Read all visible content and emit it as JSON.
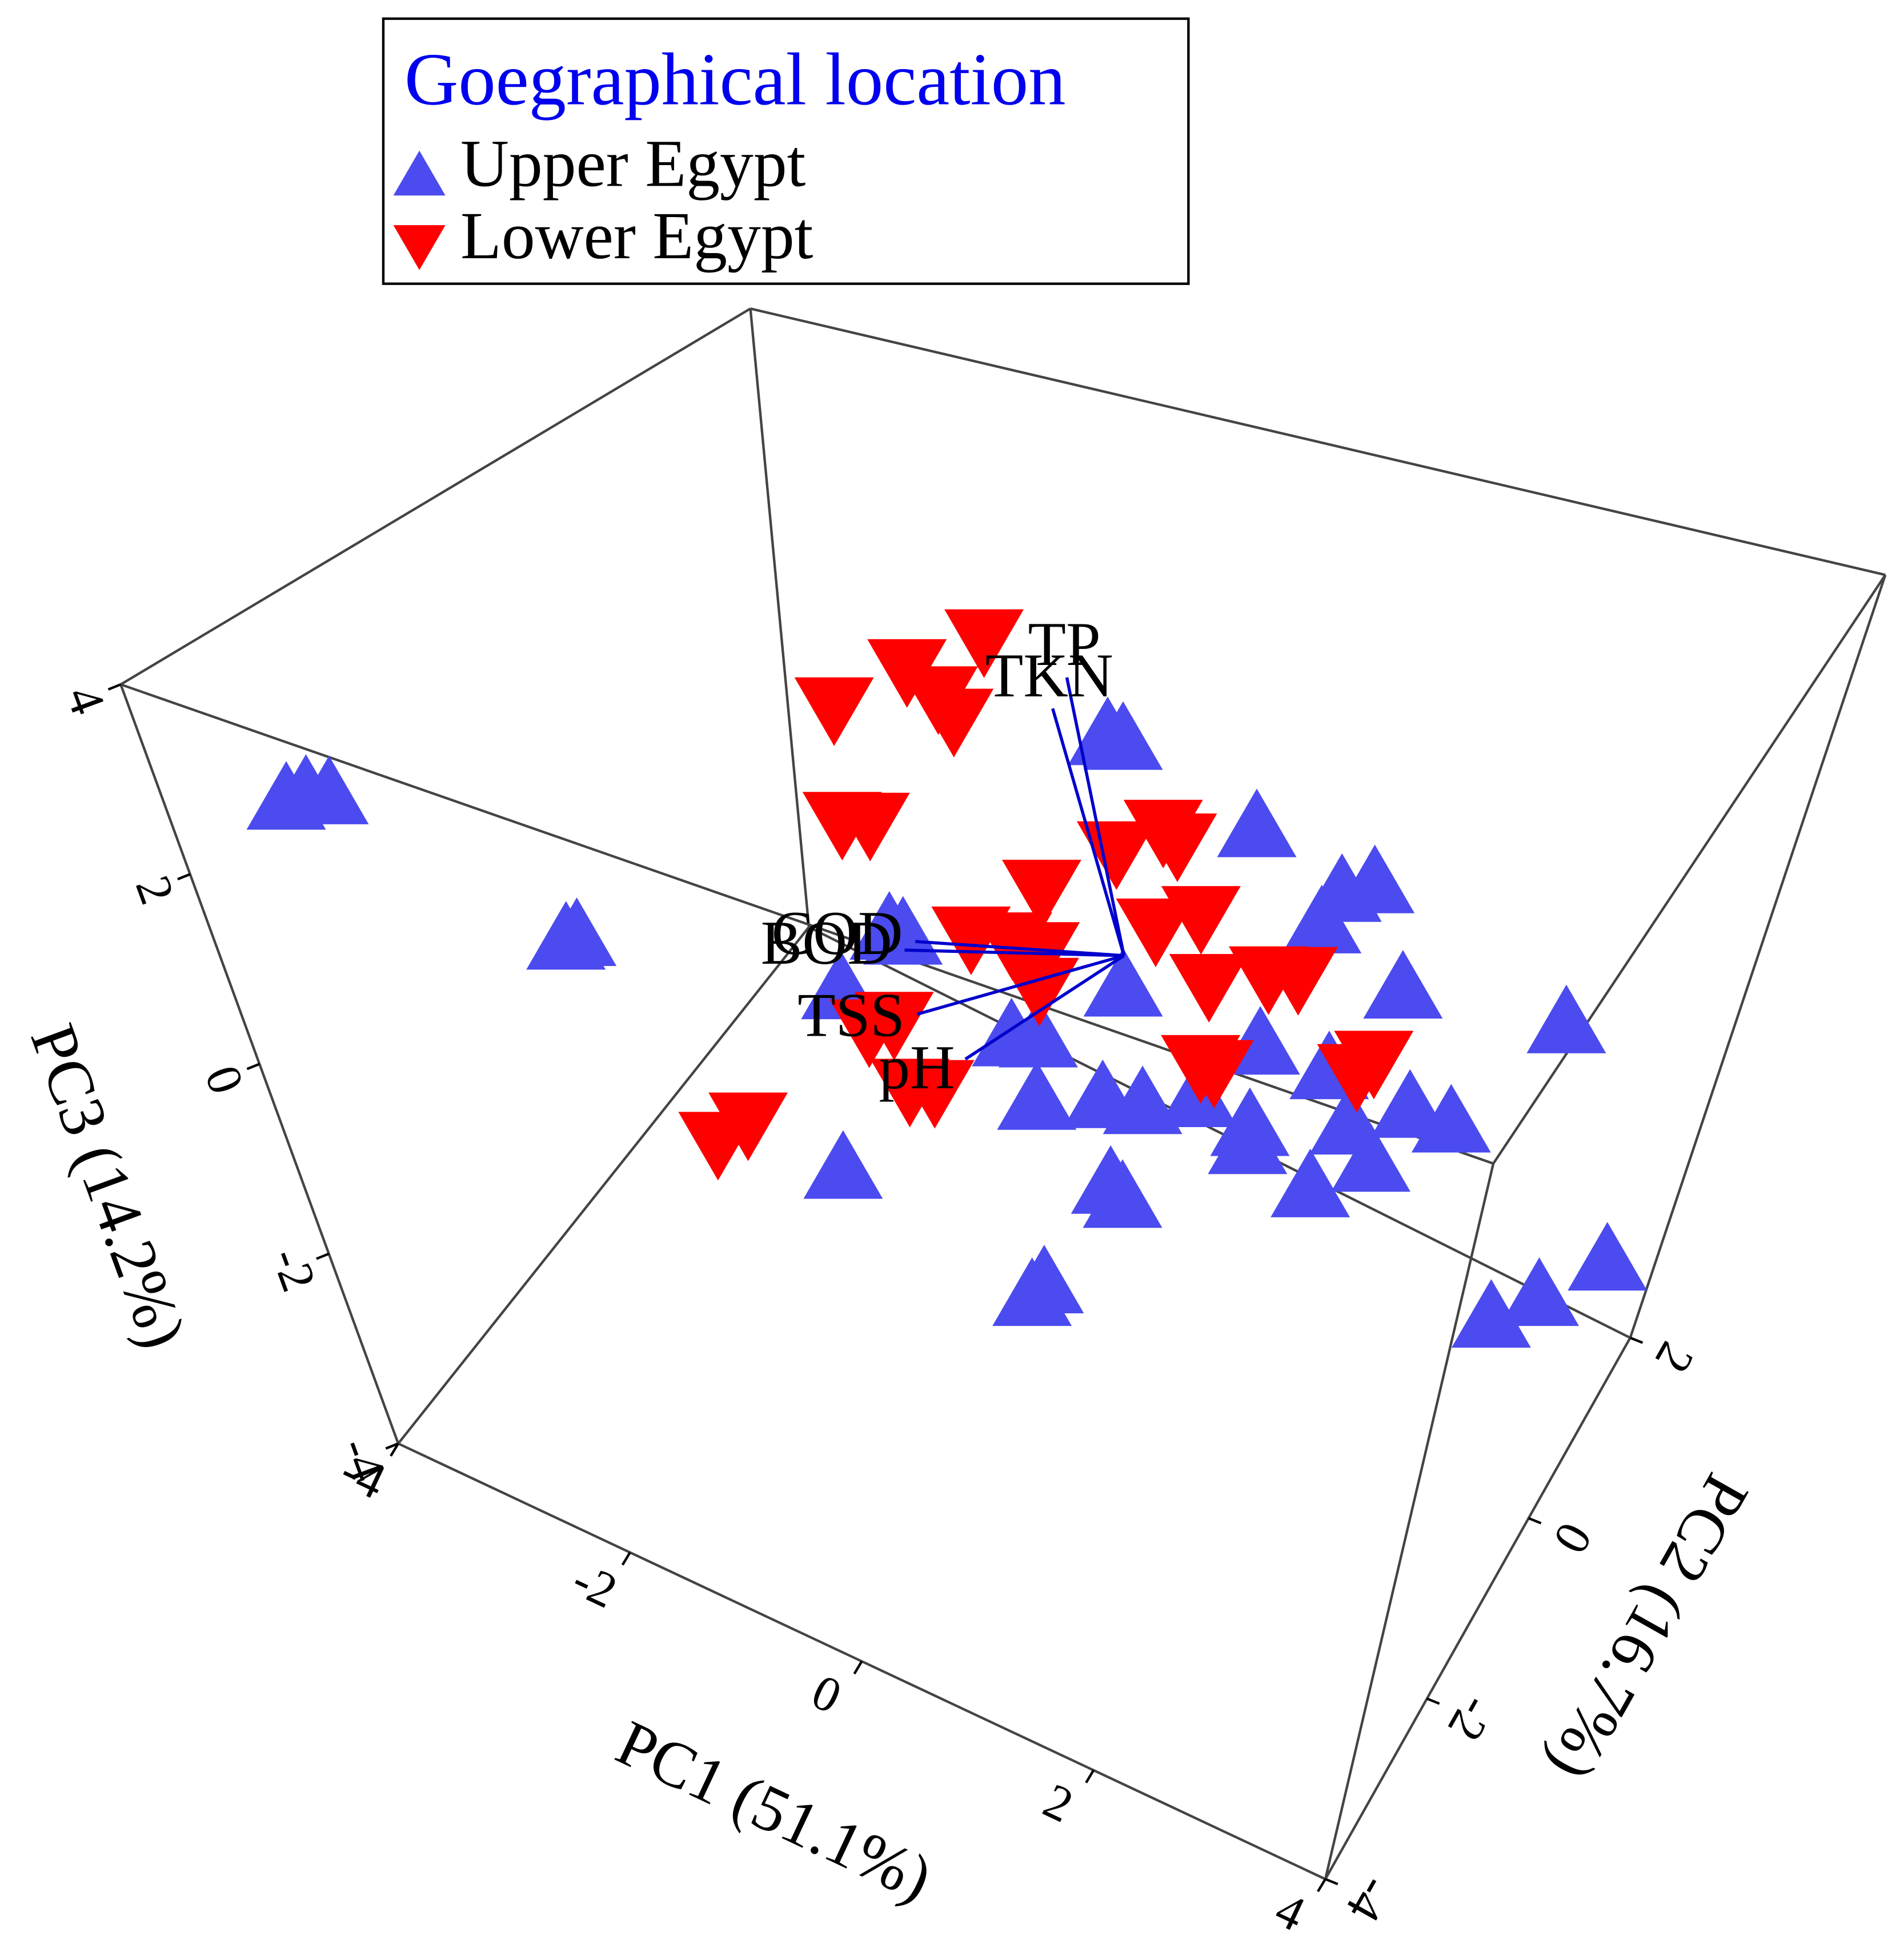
{
  "chart_data": {
    "type": "scatter3d",
    "legend_title": "Goegraphical location",
    "xlabel": "PC1 (51.1%)",
    "ylabel": "PC2 (16.7%)",
    "zlabel": "PC3 (14.2%)",
    "xlim": [
      -4,
      4
    ],
    "ylim": [
      -4,
      2
    ],
    "zlim": [
      -4,
      4
    ],
    "xticks": [
      -4,
      -2,
      0,
      2,
      4
    ],
    "yticks": [
      -4,
      -2,
      0,
      2
    ],
    "zticks": [
      -4,
      -2,
      0,
      2,
      4
    ],
    "series": [
      {
        "name": "Upper Egypt",
        "color": "#4b4bef",
        "marker": "triangle-up",
        "x": [
          -5.9,
          -5.7,
          -5.5,
          -3.8,
          -3.7,
          0.3,
          0.4,
          1.3,
          1.9,
          2.1,
          -1.2,
          -1.1,
          -1.6,
          2.4,
          3.5,
          0.5,
          -0.3,
          -0.1,
          -0.1,
          0.4,
          0.7,
          1.5,
          1.5,
          2.0,
          2.2,
          2.6,
          2.9,
          2.0,
          2.4,
          0.5,
          0.6,
          -0.1,
          0.0,
          3.5,
          3.8,
          4.2,
          -1.7,
          1.1,
          1.8,
          1.5
        ],
        "y": [
          -1,
          -1,
          -1,
          -1,
          -1,
          -1,
          -1,
          -1,
          -1,
          -1,
          -1,
          -1,
          -1,
          -1,
          -1,
          -1,
          -1,
          -1,
          -1,
          -1,
          -1,
          -1,
          -1,
          -1,
          -1,
          -1,
          -1,
          -1,
          -1,
          -1,
          -1,
          -1,
          -1,
          -1,
          -1,
          -1,
          -1,
          -1,
          -1,
          -1
        ],
        "z": [
          -0.6,
          -0.4,
          -0.3,
          -1.0,
          -0.9,
          3.6,
          3.6,
          3.1,
          2.7,
          2.9,
          0.6,
          0.6,
          -0.3,
          1.9,
          2.1,
          0.9,
          -0.1,
          0.0,
          -0.7,
          -0.4,
          -0.3,
          0.8,
          -0.1,
          0.8,
          0.3,
          0.7,
          0.7,
          -0.5,
          0.0,
          -1.3,
          -1.4,
          -2.9,
          -2.7,
          -1.1,
          -0.7,
          -0.1,
          -2.4,
          0.0,
          2.3,
          -0.3
        ]
      },
      {
        "name": "Lower Egypt",
        "color": "#ff0000",
        "marker": "triangle-down",
        "x": [
          -0.5,
          -1.0,
          -0.8,
          -1.5,
          -0.7,
          -1.5,
          -1.3,
          0.4,
          0.7,
          0.8,
          -0.1,
          -0.6,
          -0.3,
          -0.1,
          0.7,
          1.0,
          1.1,
          1.5,
          1.7,
          -1.2,
          -1.4,
          -1.1,
          -0.9,
          1.1,
          1.2,
          2.3,
          2.2,
          -2.8,
          -2.5,
          -0.1
        ],
        "y": [
          -1,
          -1,
          -1,
          -1,
          -1,
          -1,
          -1,
          -1,
          -1,
          -1,
          -1,
          -1,
          -1,
          -1,
          -1,
          -1,
          -1,
          -1,
          -1,
          -1,
          -1,
          -1,
          -1,
          -1,
          -1,
          -1,
          -1,
          -1,
          -1,
          -1
        ],
        "z": [
          4.2,
          3.6,
          3.4,
          2.9,
          3.2,
          1.6,
          1.7,
          2.3,
          2.7,
          2.6,
          1.6,
          0.8,
          0.9,
          0.9,
          1.6,
          1.9,
          1.2,
          1.5,
          1.6,
          -0.5,
          -0.7,
          -1.2,
          -1.1,
          0.3,
          0.3,
          1.0,
          0.8,
          -2.8,
          -2.4,
          0.5
        ]
      }
    ],
    "loadings": {
      "names": [
        "TP",
        "TKN",
        "COD",
        "BOD",
        "TSS",
        "pH"
      ],
      "x": [
        -0.51,
        -0.6,
        -1.63,
        -1.72,
        -1.64,
        -1.24
      ],
      "y": [
        0,
        0,
        0,
        0,
        0,
        0
      ],
      "z": [
        2.9,
        2.5,
        -0.73,
        -0.88,
        -1.58,
        -1.87
      ],
      "color": "#0000cc"
    }
  }
}
